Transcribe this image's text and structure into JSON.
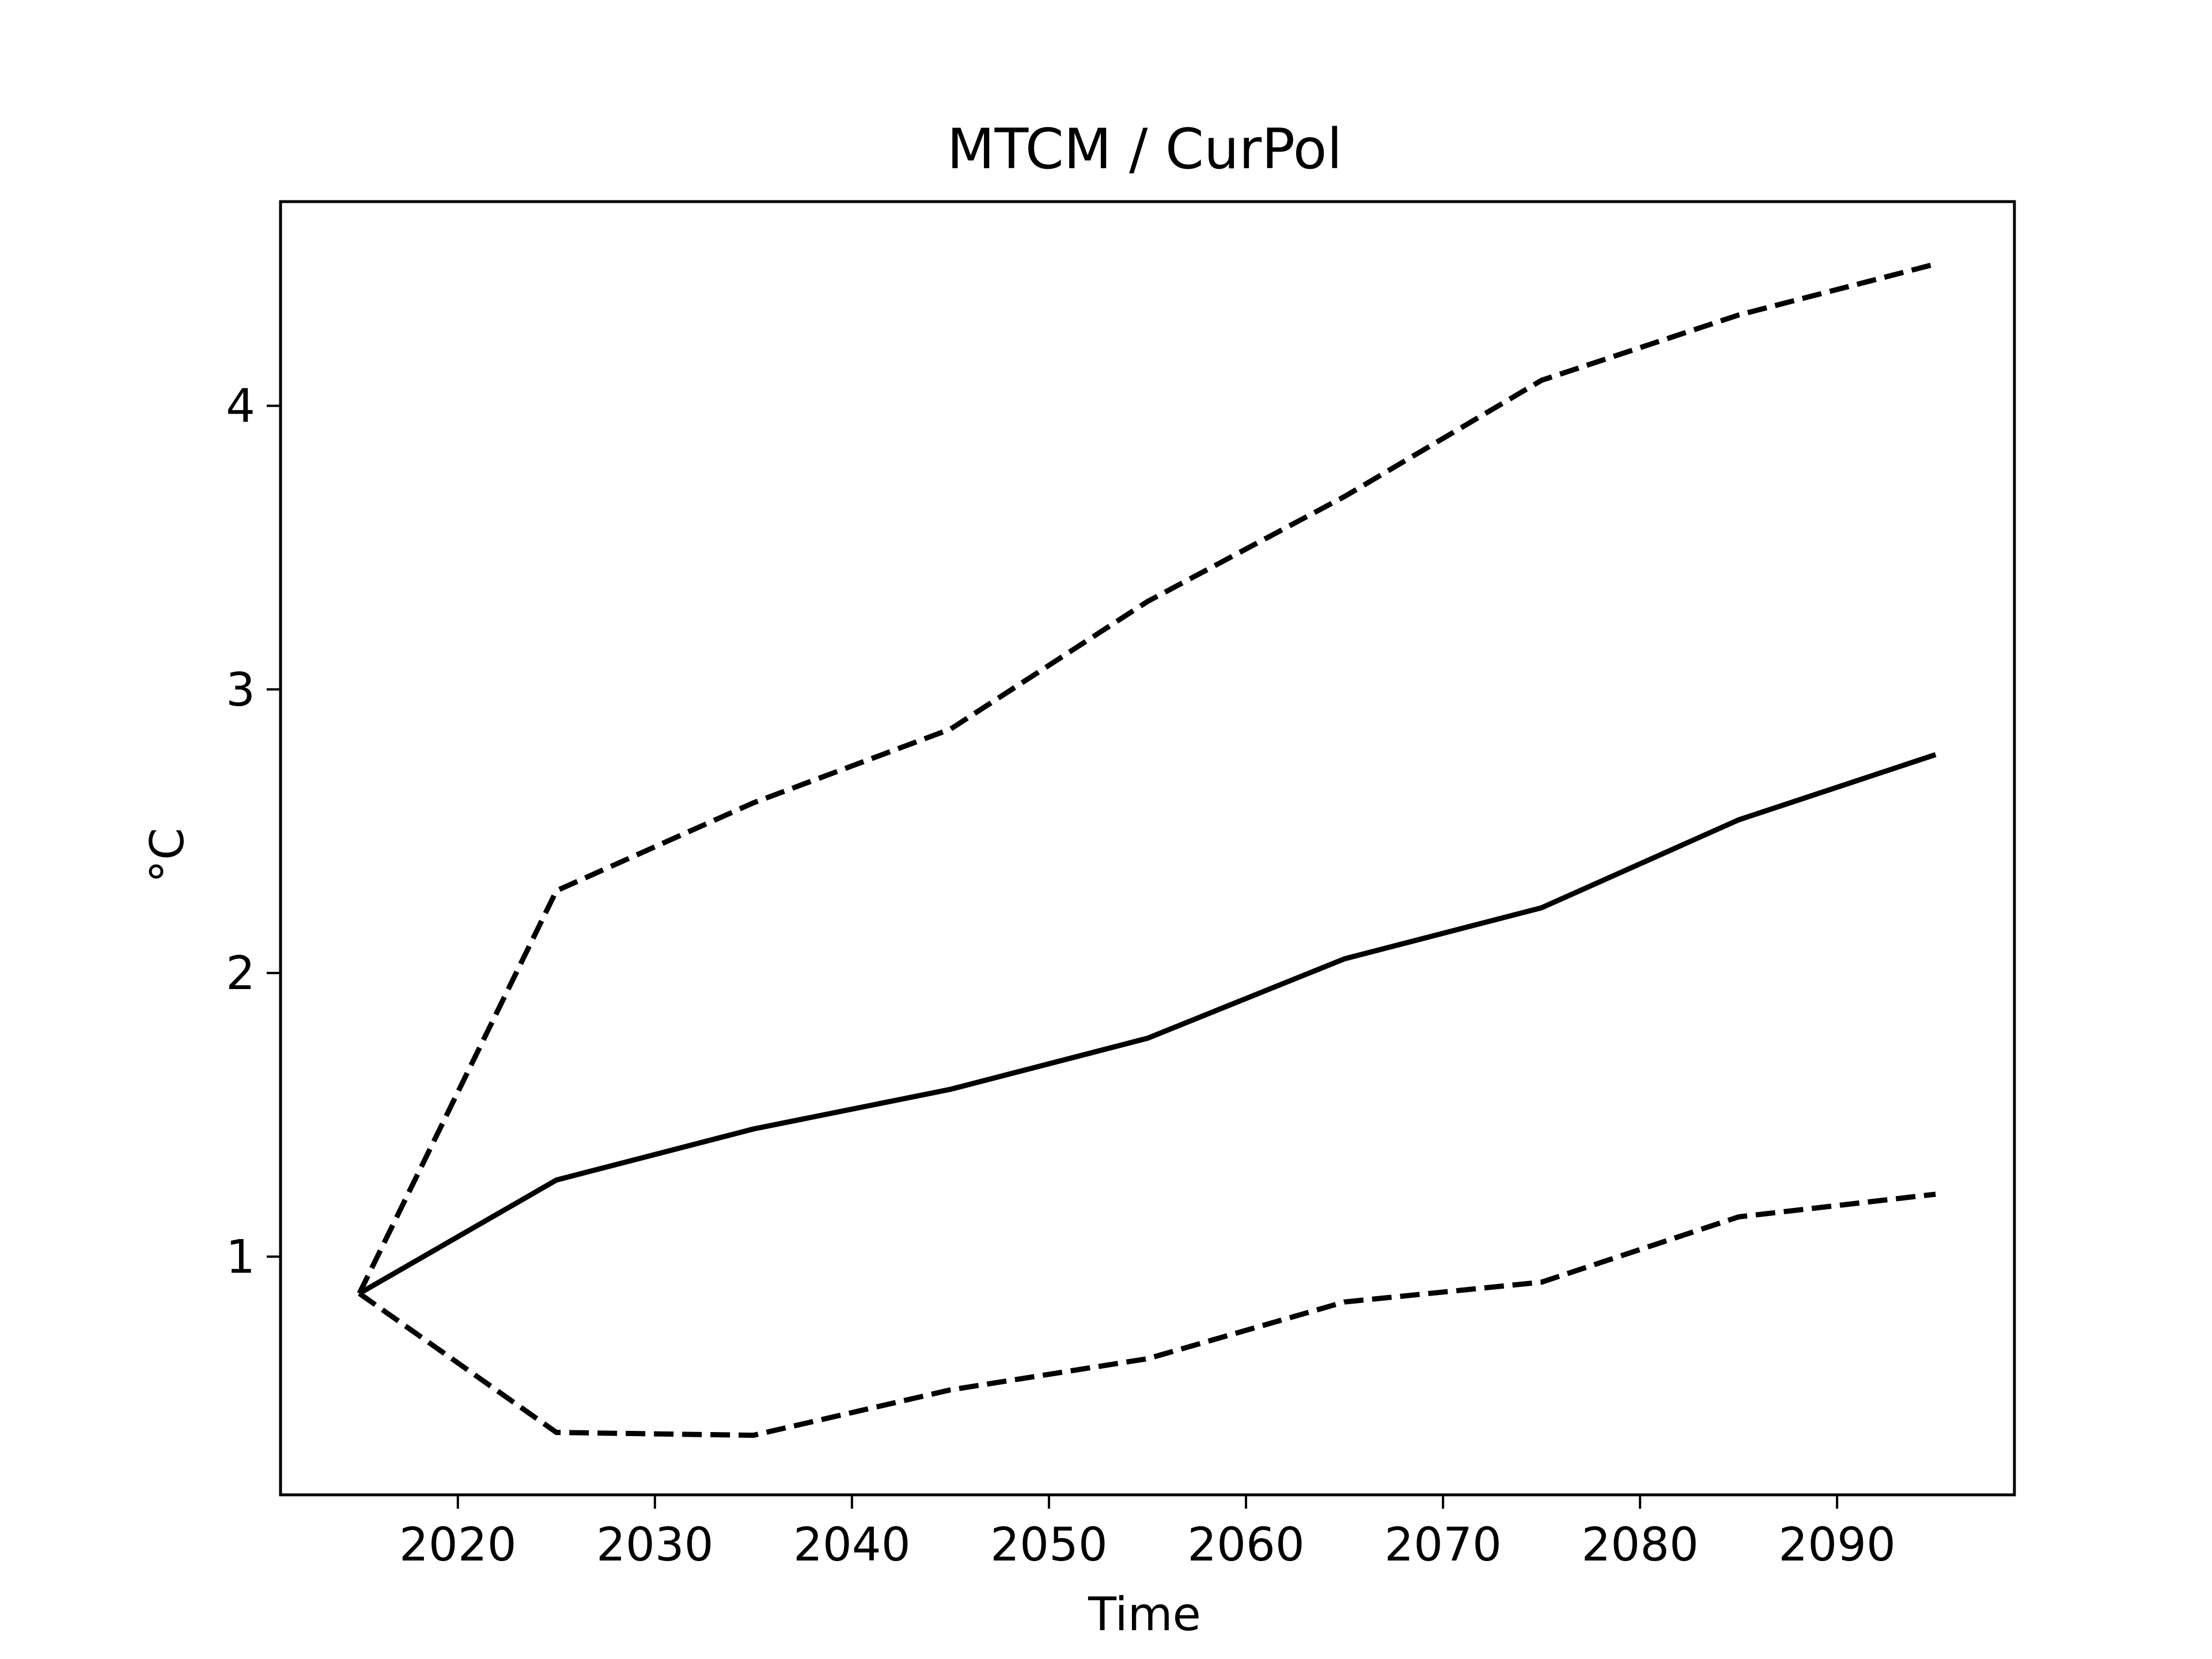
{
  "chart_data": {
    "type": "line",
    "title": "MTCM / CurPol",
    "xlabel": "Time",
    "ylabel": "°C",
    "xlim": [
      2011,
      2099
    ],
    "ylim": [
      0.16,
      4.72
    ],
    "xticks": [
      2020,
      2030,
      2040,
      2050,
      2060,
      2070,
      2080,
      2090
    ],
    "yticks": [
      1,
      2,
      3,
      4
    ],
    "grid": false,
    "legend": "none",
    "x": [
      2015,
      2025,
      2035,
      2045,
      2055,
      2065,
      2075,
      2085,
      2095
    ],
    "series": [
      {
        "style": "solid",
        "color": "#000000",
        "values": [
          0.87,
          1.27,
          1.45,
          1.59,
          1.77,
          2.05,
          2.23,
          2.54,
          2.77
        ]
      },
      {
        "style": "dashed",
        "color": "#000000",
        "values": [
          0.87,
          2.29,
          2.6,
          2.86,
          3.31,
          3.68,
          4.09,
          4.32,
          4.5
        ]
      },
      {
        "style": "dashed",
        "color": "#000000",
        "values": [
          0.87,
          0.38,
          0.37,
          0.53,
          0.64,
          0.84,
          0.91,
          1.14,
          1.22
        ]
      }
    ]
  }
}
